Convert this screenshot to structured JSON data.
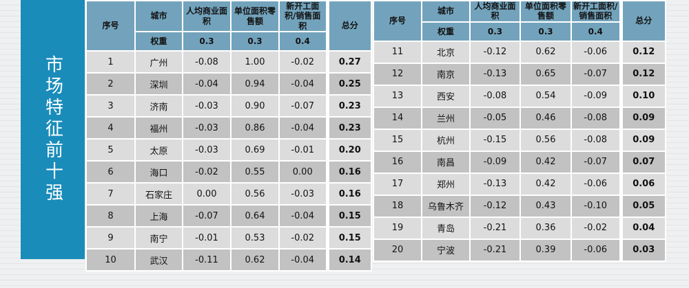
{
  "banner": {
    "text": "市场特征前十强",
    "bg_color": "#1a8cba"
  },
  "colors": {
    "banner_bg": "#1a8cba",
    "header_bg": "#73a3bc",
    "row_odd_bg": "#dcdcdc",
    "row_even_bg": "#c2c2c2",
    "border": "#ffffff",
    "text": "#121212"
  },
  "header": {
    "seq": "序号",
    "city": "城市",
    "weight": "权重",
    "total": "总分",
    "metrics": [
      "人均商业面积",
      "单位面积零售额",
      "新开工面积/销售面积"
    ],
    "weights": [
      "0.3",
      "0.3",
      "0.4"
    ]
  },
  "chart_data": {
    "type": "table",
    "title": "市场特征前十强",
    "columns": [
      "序号",
      "城市",
      "人均商业面积 (权重0.3)",
      "单位面积零售额 (权重0.3)",
      "新开工面积/销售面积 (权重0.4)",
      "总分"
    ],
    "left_rows": [
      [
        "1",
        "广州",
        "-0.08",
        "1.00",
        "-0.02",
        "0.27"
      ],
      [
        "2",
        "深圳",
        "-0.04",
        "0.94",
        "-0.04",
        "0.25"
      ],
      [
        "3",
        "济南",
        "-0.03",
        "0.90",
        "-0.07",
        "0.23"
      ],
      [
        "4",
        "福州",
        "-0.03",
        "0.86",
        "-0.04",
        "0.23"
      ],
      [
        "5",
        "太原",
        "-0.03",
        "0.69",
        "-0.01",
        "0.20"
      ],
      [
        "6",
        "海口",
        "-0.02",
        "0.55",
        "0.00",
        "0.16"
      ],
      [
        "7",
        "石家庄",
        "0.00",
        "0.56",
        "-0.03",
        "0.16"
      ],
      [
        "8",
        "上海",
        "-0.07",
        "0.64",
        "-0.04",
        "0.15"
      ],
      [
        "9",
        "南宁",
        "-0.01",
        "0.53",
        "-0.02",
        "0.15"
      ],
      [
        "10",
        "武汉",
        "-0.11",
        "0.62",
        "-0.04",
        "0.14"
      ]
    ],
    "right_rows": [
      [
        "11",
        "北京",
        "-0.12",
        "0.62",
        "-0.06",
        "0.12"
      ],
      [
        "12",
        "南京",
        "-0.13",
        "0.65",
        "-0.07",
        "0.12"
      ],
      [
        "13",
        "西安",
        "-0.08",
        "0.54",
        "-0.09",
        "0.10"
      ],
      [
        "14",
        "兰州",
        "-0.05",
        "0.46",
        "-0.08",
        "0.09"
      ],
      [
        "15",
        "杭州",
        "-0.15",
        "0.56",
        "-0.08",
        "0.09"
      ],
      [
        "16",
        "南昌",
        "-0.09",
        "0.42",
        "-0.07",
        "0.07"
      ],
      [
        "17",
        "郑州",
        "-0.13",
        "0.42",
        "-0.06",
        "0.06"
      ],
      [
        "18",
        "乌鲁木齐",
        "-0.12",
        "0.43",
        "-0.10",
        "0.05"
      ],
      [
        "19",
        "青岛",
        "-0.21",
        "0.36",
        "-0.02",
        "0.04"
      ],
      [
        "20",
        "宁波",
        "-0.21",
        "0.39",
        "-0.06",
        "0.03"
      ]
    ]
  }
}
